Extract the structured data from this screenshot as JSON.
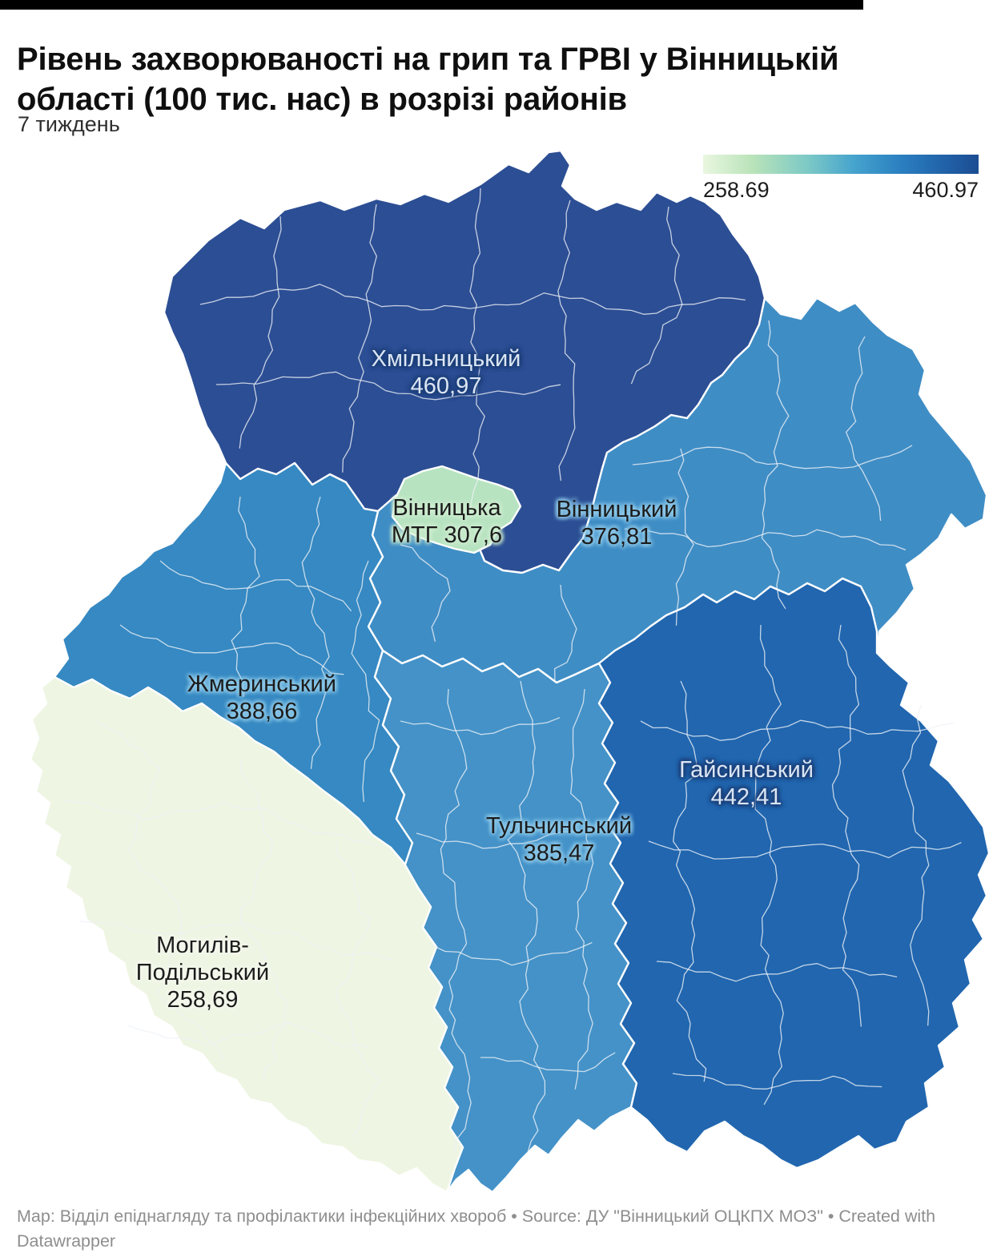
{
  "header": {
    "title": "Рівень захворюваності на грип та ГРВІ у Вінницькій області (100 тис. нас) в розрізі районів",
    "subtitle": "7 тиждень"
  },
  "legend": {
    "min_label": "258.69",
    "max_label": "460.97",
    "gradient_colors": [
      "#e9f7e0",
      "#b9e3b9",
      "#7cc9c6",
      "#45a3cd",
      "#2a7fc0",
      "#2161a8",
      "#1c4d92"
    ]
  },
  "map": {
    "regions": [
      {
        "id": "khmilnytskyi",
        "name": "Хмільницький",
        "value": 460.97,
        "color": "#2c4e94",
        "label_lines": [
          "Хмільницький",
          "460,97"
        ]
      },
      {
        "id": "vinnytskyi",
        "name": "Вінницький",
        "value": 376.81,
        "color": "#3f8dc5",
        "label_lines": [
          "Вінницький",
          "376,81"
        ]
      },
      {
        "id": "vinnytska-mtg",
        "name": "Вінницька МТГ",
        "value": 307.6,
        "color": "#b7e3c1",
        "label_lines": [
          "Вінницька",
          "МТГ 307,6"
        ]
      },
      {
        "id": "zhmerynskyi",
        "name": "Жмеринський",
        "value": 388.66,
        "color": "#3689c2",
        "label_lines": [
          "Жмеринський",
          "388,66"
        ]
      },
      {
        "id": "tulchynskyi",
        "name": "Тульчинський",
        "value": 385.47,
        "color": "#4492c8",
        "label_lines": [
          "Тульчинський",
          "385,47"
        ]
      },
      {
        "id": "haisynskyi",
        "name": "Гайсинський",
        "value": 442.41,
        "color": "#2166af",
        "label_lines": [
          "Гайсинський",
          "442,41"
        ]
      },
      {
        "id": "mohyliv",
        "name": "Могилів-Подільський",
        "value": 258.69,
        "color": "#eef5e2",
        "label_lines": [
          "Могилів-",
          "Подільський",
          "258,69"
        ]
      }
    ]
  },
  "chart_data": {
    "type": "choropleth_map",
    "title": "Рівень захворюваності на грип та ГРВІ у Вінницькій області (100 тис. нас) в розрізі районів",
    "subtitle": "7 тиждень",
    "categories": [
      "Хмільницький",
      "Гайсинський",
      "Жмеринський",
      "Тульчинський",
      "Вінницький",
      "Вінницька МТГ",
      "Могилів-Подільський"
    ],
    "values": [
      460.97,
      442.41,
      388.66,
      385.47,
      376.81,
      307.6,
      258.69
    ],
    "value_range": [
      258.69,
      460.97
    ],
    "legend_position": "top-right"
  },
  "footer": {
    "line1": "Map: Відділ епіднагляду та профілактики інфекційних хвороб • Source: ДУ \"Вінницький ОЦКПХ МОЗ\" • Created with",
    "line2": "Datawrapper"
  }
}
